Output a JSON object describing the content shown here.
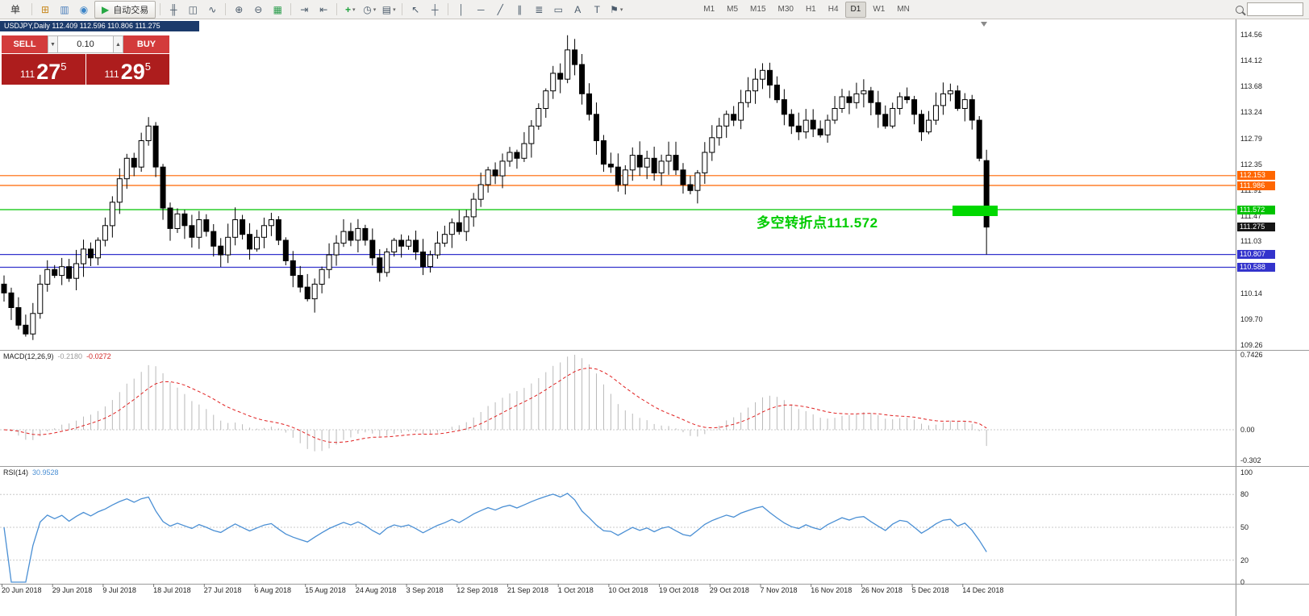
{
  "toolbar": {
    "menu_label": "单",
    "items": [
      {
        "name": "new-order-icon",
        "glyph": "⊞",
        "color": "#c8881e"
      },
      {
        "name": "chart-window-icon",
        "glyph": "▥",
        "color": "#4a7ebb"
      },
      {
        "name": "profiles-icon",
        "glyph": "◉",
        "color": "#3d85c8"
      },
      {
        "name": "autotrading-button",
        "glyph": "▶",
        "color": "#27a844",
        "label": "自动交易",
        "button": true,
        "sep_after": true
      },
      {
        "name": "bar-chart-icon",
        "glyph": "╫"
      },
      {
        "name": "candlestick-chart-icon",
        "glyph": "◫"
      },
      {
        "name": "line-chart-icon",
        "glyph": "∿",
        "sep_after": true
      },
      {
        "name": "zoom-in-icon",
        "glyph": "⊕"
      },
      {
        "name": "zoom-out-icon",
        "glyph": "⊖"
      },
      {
        "name": "tile-windows-icon",
        "glyph": "▦",
        "color": "#2e9e4f",
        "sep_after": true
      },
      {
        "name": "auto-scroll-icon",
        "glyph": "⇥"
      },
      {
        "name": "chart-shift-icon",
        "glyph": "⇤",
        "sep_after": true
      },
      {
        "name": "indicators-icon",
        "glyph": "+",
        "color": "#1fa23d",
        "caret": true
      },
      {
        "name": "periods-icon",
        "glyph": "◷",
        "caret": true
      },
      {
        "name": "templates-icon",
        "glyph": "▤",
        "caret": true,
        "sep_after": true
      },
      {
        "name": "cursor-icon",
        "glyph": "↖"
      },
      {
        "name": "crosshair-icon",
        "glyph": "┼",
        "sep_after": true
      },
      {
        "name": "vertical-line-icon",
        "glyph": "│"
      },
      {
        "name": "horizontal-line-icon",
        "glyph": "─"
      },
      {
        "name": "trendline-icon",
        "glyph": "╱"
      },
      {
        "name": "channel-icon",
        "glyph": "∥"
      },
      {
        "name": "fibonacci-icon",
        "glyph": "≣"
      },
      {
        "name": "shapes-icon",
        "glyph": "▭"
      },
      {
        "name": "text-icon",
        "glyph": "A"
      },
      {
        "name": "label-icon",
        "glyph": "T"
      },
      {
        "name": "arrows-icon",
        "glyph": "⚑",
        "caret": true
      }
    ],
    "timeframes": [
      "M1",
      "M5",
      "M15",
      "M30",
      "H1",
      "H4",
      "D1",
      "W1",
      "MN"
    ],
    "active_timeframe": "D1"
  },
  "title_bar": {
    "text": "USDJPY,Daily  112.409 112.596 110.806 111.275"
  },
  "order_panel": {
    "sell_label": "SELL",
    "buy_label": "BUY",
    "volume": "0.10",
    "bid_prefix": "111",
    "bid_big": "27",
    "bid_sup": "5",
    "ask_prefix": "111",
    "ask_big": "29",
    "ask_sup": "5"
  },
  "main_chart": {
    "scale_labels": [
      "114.56",
      "114.12",
      "113.68",
      "113.24",
      "112.79",
      "112.35",
      "111.91",
      "111.47",
      "111.03",
      "110.58",
      "110.14",
      "109.70",
      "109.26"
    ],
    "levels": [
      {
        "tag": "112.153",
        "price": 112.153,
        "color": "#ff6600",
        "line": true
      },
      {
        "tag": "111.986",
        "price": 111.986,
        "color": "#ff6600",
        "line": true
      },
      {
        "tag": "111.572",
        "price": 111.572,
        "color": "#00c300",
        "line": true
      },
      {
        "tag": "111.275",
        "price": 111.275,
        "color": "#151515",
        "line": false
      },
      {
        "tag": "110.807",
        "price": 110.807,
        "color": "#3333cc",
        "line": true
      },
      {
        "tag": "110.588",
        "price": 110.588,
        "color": "#3333cc",
        "line": true
      }
    ],
    "highlight_color": "#00d800"
  },
  "annotation": {
    "text": "多空转折点111.572",
    "color": "#00cc00"
  },
  "macd": {
    "name": "MACD(12,26,9)",
    "value_main": "-0.2180",
    "value_signal": "-0.0272",
    "axis": [
      "0.7426",
      "0.00",
      "-0.302"
    ]
  },
  "rsi": {
    "name": "RSI(14)",
    "value": "30.9528",
    "axis": [
      "100",
      "80",
      "50",
      "20",
      "0"
    ]
  },
  "chart_data": {
    "type": "candlestick",
    "symbol": "USDJPY",
    "period": "Daily",
    "title_ohlc": {
      "open": 112.409,
      "high": 112.596,
      "low": 110.806,
      "close": 111.275
    },
    "first_open": 110.3,
    "closes": [
      110.15,
      109.9,
      109.6,
      109.45,
      109.8,
      110.3,
      110.55,
      110.45,
      110.6,
      110.4,
      110.65,
      110.9,
      110.75,
      111.05,
      111.3,
      111.7,
      112.1,
      112.45,
      112.3,
      112.75,
      113.0,
      112.3,
      111.6,
      111.25,
      111.5,
      111.3,
      111.1,
      111.4,
      111.2,
      110.95,
      110.8,
      111.1,
      111.4,
      111.15,
      110.9,
      111.1,
      111.3,
      111.4,
      111.05,
      110.7,
      110.45,
      110.25,
      110.05,
      110.3,
      110.55,
      110.8,
      111.0,
      111.2,
      111.05,
      111.25,
      111.05,
      110.75,
      110.5,
      110.85,
      111.05,
      110.95,
      111.05,
      110.85,
      110.6,
      110.8,
      111.0,
      111.15,
      111.35,
      111.2,
      111.45,
      111.75,
      112.0,
      112.25,
      112.15,
      112.4,
      112.55,
      112.45,
      112.7,
      113.0,
      113.3,
      113.6,
      113.9,
      113.8,
      114.3,
      114.05,
      113.55,
      113.2,
      112.75,
      112.35,
      112.3,
      112.0,
      112.25,
      112.5,
      112.3,
      112.45,
      112.2,
      112.4,
      112.5,
      112.25,
      112.0,
      111.9,
      112.2,
      112.55,
      112.8,
      113.0,
      113.2,
      113.1,
      113.4,
      113.6,
      113.8,
      113.95,
      113.7,
      113.45,
      113.2,
      113.0,
      112.9,
      113.1,
      112.95,
      112.85,
      113.1,
      113.3,
      113.5,
      113.4,
      113.55,
      113.6,
      113.4,
      113.2,
      113.0,
      113.3,
      113.5,
      113.45,
      113.2,
      112.9,
      113.1,
      113.35,
      113.55,
      113.6,
      113.3,
      113.45,
      113.1,
      112.45,
      111.275
    ],
    "spike_index": 78,
    "spike_high": 114.55,
    "indicators": {
      "macd": {
        "fast": 12,
        "slow": 26,
        "signal": 9,
        "axis_max": 0.7426,
        "axis_min": -0.302
      },
      "rsi": {
        "period": 14,
        "levels": [
          80,
          50,
          20
        ]
      }
    },
    "x_labels": [
      "20 Jun 2018",
      "29 Jun 2018",
      "9 Jul 2018",
      "18 Jul 2018",
      "27 Jul 2018",
      "6 Aug 2018",
      "15 Aug 2018",
      "24 Aug 2018",
      "3 Sep 2018",
      "12 Sep 2018",
      "21 Sep 2018",
      "1 Oct 2018",
      "10 Oct 2018",
      "19 Oct 2018",
      "29 Oct 2018",
      "7 Nov 2018",
      "16 Nov 2018",
      "26 Nov 2018",
      "5 Dec 2018",
      "14 Dec 2018"
    ]
  }
}
